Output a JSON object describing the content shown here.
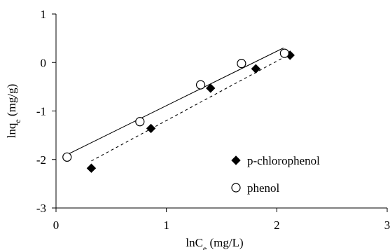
{
  "chart_data": {
    "type": "scatter",
    "xlabel": {
      "main": "lnC",
      "sub": "e",
      "rest": " (mg/L)"
    },
    "ylabel": {
      "main": "lnq",
      "sub": "e",
      "rest": " (mg/g)"
    },
    "xlim": [
      0,
      3
    ],
    "ylim": [
      -3,
      1
    ],
    "x_ticks": [
      0,
      1,
      2,
      3
    ],
    "y_ticks": [
      -3,
      -2,
      -1,
      0,
      1
    ],
    "x_tick_labels": [
      "0",
      "1",
      "2",
      "3"
    ],
    "y_tick_labels": [
      "-3",
      "-2",
      "-1",
      "0",
      "1"
    ],
    "grid": false,
    "legend_position": "right",
    "series": [
      {
        "name": "p-chlorophenol",
        "marker": "diamond-filled",
        "fit_line": "dashed",
        "fit_x": [
          0.32,
          2.1
        ],
        "fit_y": [
          -2.03,
          0.15
        ],
        "points": [
          {
            "x": 0.32,
            "y": -2.18
          },
          {
            "x": 0.86,
            "y": -1.36
          },
          {
            "x": 1.4,
            "y": -0.53
          },
          {
            "x": 1.81,
            "y": -0.13
          },
          {
            "x": 2.12,
            "y": 0.15
          }
        ]
      },
      {
        "name": "phenol",
        "marker": "circle-open",
        "fit_line": "solid",
        "fit_x": [
          0.1,
          2.06
        ],
        "fit_y": [
          -1.9,
          0.3
        ],
        "points": [
          {
            "x": 0.1,
            "y": -1.95
          },
          {
            "x": 0.76,
            "y": -1.22
          },
          {
            "x": 1.31,
            "y": -0.46
          },
          {
            "x": 1.68,
            "y": -0.02
          },
          {
            "x": 2.07,
            "y": 0.19
          }
        ]
      }
    ]
  }
}
